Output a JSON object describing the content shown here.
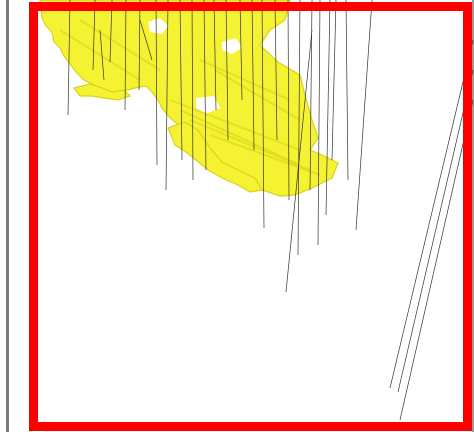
{
  "viewer": {
    "background_color": "#ffffff",
    "surface_color": "#f5f232",
    "surface_shadow_color": "#d8d31a",
    "drillhole_color": "#333333",
    "selection_color": "#ff0000",
    "frame_color": "#7b7b7b"
  }
}
